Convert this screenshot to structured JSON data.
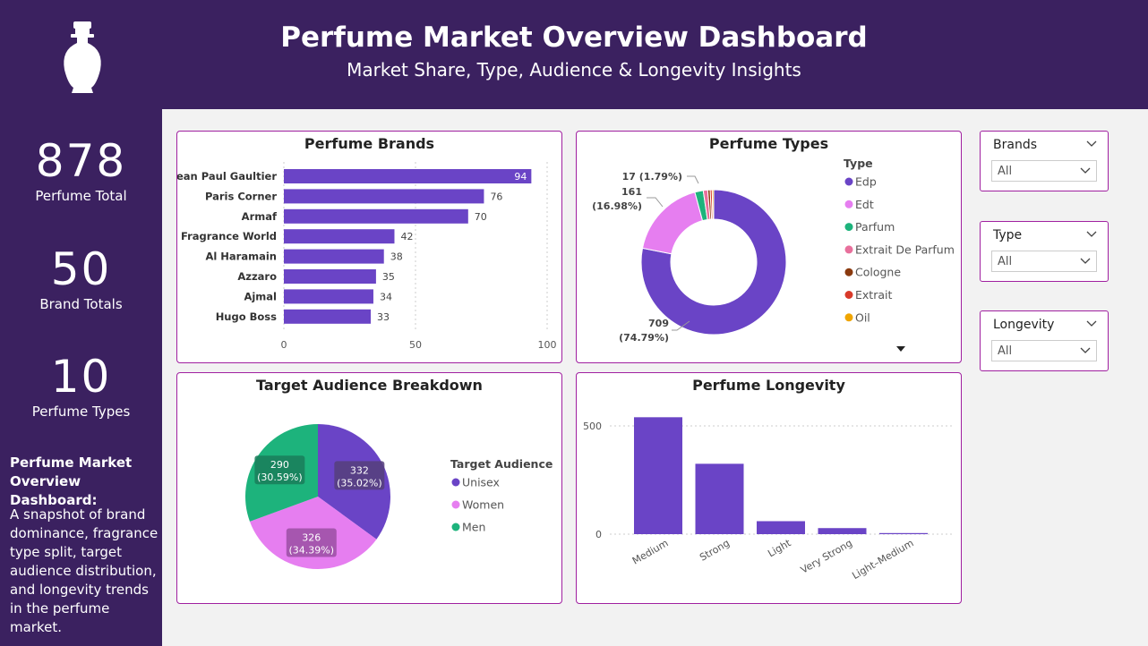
{
  "header": {
    "title": "Perfume Market Overview Dashboard",
    "subtitle": "Market Share, Type, Audience & Longevity Insights"
  },
  "kpis": [
    {
      "value": "878",
      "label": "Perfume Total"
    },
    {
      "value": "50",
      "label": "Brand Totals"
    },
    {
      "value": "10",
      "label": "Perfume Types"
    }
  ],
  "description": {
    "title": "Perfume Market Overview Dashboard:",
    "body": "A snapshot of brand dominance, fragrance type split, target audience distribution, and longevity trends in the perfume market."
  },
  "slicers": [
    {
      "title": "Brands",
      "value": "All"
    },
    {
      "title": "Type",
      "value": "All"
    },
    {
      "title": "Longevity",
      "value": "All"
    }
  ],
  "colors": {
    "header_bg": "#3b2160",
    "bar": "#6a44c6",
    "card_border": "#a020a0"
  },
  "chart_data": [
    {
      "type": "bar",
      "orientation": "horizontal",
      "title": "Perfume Brands",
      "categories": [
        "Jean Paul Gaultier",
        "Paris Corner",
        "Armaf",
        "Fragrance World",
        "Al Haramain",
        "Azzaro",
        "Ajmal",
        "Hugo Boss"
      ],
      "values": [
        94,
        76,
        70,
        42,
        38,
        35,
        34,
        33
      ],
      "xlim": [
        0,
        100
      ],
      "xticks": [
        "0",
        "50",
        "100"
      ],
      "grid": true
    },
    {
      "type": "pie",
      "donut": true,
      "title": "Perfume Types",
      "legend_title": "Type",
      "labels": [
        "Edp",
        "Edt",
        "Parfum",
        "Extrait De Parfum",
        "Cologne",
        "Extrait",
        "Oil"
      ],
      "values": [
        709,
        161,
        17,
        9,
        5,
        4,
        3
      ],
      "colors": [
        "#6a44c6",
        "#e67ef0",
        "#1db37c",
        "#e8709c",
        "#8a3a0f",
        "#d83a2a",
        "#f0a500"
      ],
      "data_labels": [
        {
          "value": "709",
          "pct": "(74.79%)"
        },
        {
          "value": "161",
          "pct": "(16.98%)"
        },
        {
          "value": "17 (1.79%)"
        }
      ],
      "legend_position": "right"
    },
    {
      "type": "pie",
      "title": "Target Audience Breakdown",
      "legend_title": "Target Audience",
      "labels": [
        "Unisex",
        "Women",
        "Men"
      ],
      "values": [
        332,
        326,
        290
      ],
      "percents": [
        "(35.02%)",
        "(34.39%)",
        "(30.59%)"
      ],
      "colors": [
        "#6a44c6",
        "#e67ef0",
        "#1db37c"
      ],
      "legend_position": "right"
    },
    {
      "type": "bar",
      "title": "Perfume Longevity",
      "categories": [
        "Medium",
        "Strong",
        "Light",
        "Very Strong",
        "Light–Medium"
      ],
      "values": [
        540,
        325,
        60,
        28,
        5
      ],
      "ylim": [
        0,
        560
      ],
      "yticks": [
        "0",
        "500"
      ],
      "grid": true
    }
  ]
}
